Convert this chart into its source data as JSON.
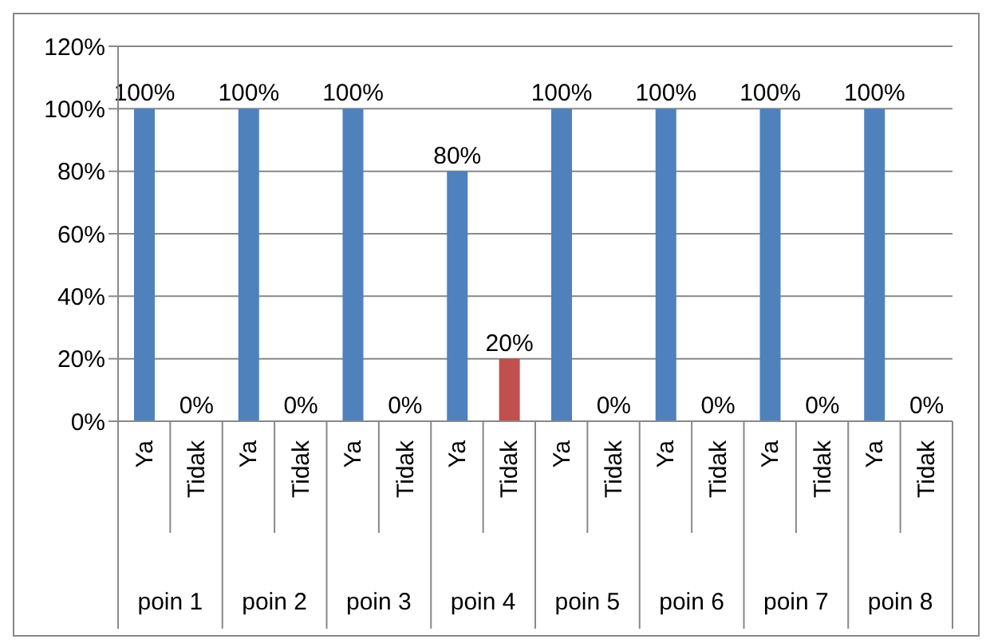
{
  "chart_data": {
    "type": "bar",
    "categories": [
      "Ya",
      "Tidak",
      "Ya",
      "Tidak",
      "Ya",
      "Tidak",
      "Ya",
      "Tidak",
      "Ya",
      "Tidak",
      "Ya",
      "Tidak",
      "Ya",
      "Tidak",
      "Ya",
      "Tidak"
    ],
    "values": [
      100,
      0,
      100,
      0,
      100,
      0,
      80,
      20,
      100,
      0,
      100,
      0,
      100,
      0,
      100,
      0
    ],
    "colors": [
      "#4f81bd",
      "#c0504d",
      "#4f81bd",
      "#c0504d",
      "#4f81bd",
      "#c0504d",
      "#4f81bd",
      "#c0504d",
      "#4f81bd",
      "#c0504d",
      "#4f81bd",
      "#c0504d",
      "#4f81bd",
      "#c0504d",
      "#4f81bd",
      "#c0504d"
    ],
    "value_labels": [
      "100%",
      "0%",
      "100%",
      "0%",
      "100%",
      "0%",
      "80%",
      "20%",
      "100%",
      "0%",
      "100%",
      "0%",
      "100%",
      "0%",
      "100%",
      "0%"
    ],
    "annotations": [
      "poin 1",
      "poin 2",
      "poin 3",
      "poin 4",
      "poin 5",
      "poin 6",
      "poin 7",
      "poin 8"
    ],
    "ylim": [
      0,
      120
    ],
    "yticks": [
      {
        "value": 0,
        "label": "0%"
      },
      {
        "value": 20,
        "label": "20%"
      },
      {
        "value": 40,
        "label": "40%"
      },
      {
        "value": 60,
        "label": "60%"
      },
      {
        "value": 80,
        "label": "80%"
      },
      {
        "value": 100,
        "label": "100%"
      },
      {
        "value": 120,
        "label": "120%"
      }
    ],
    "grid": "y",
    "legend": false
  }
}
